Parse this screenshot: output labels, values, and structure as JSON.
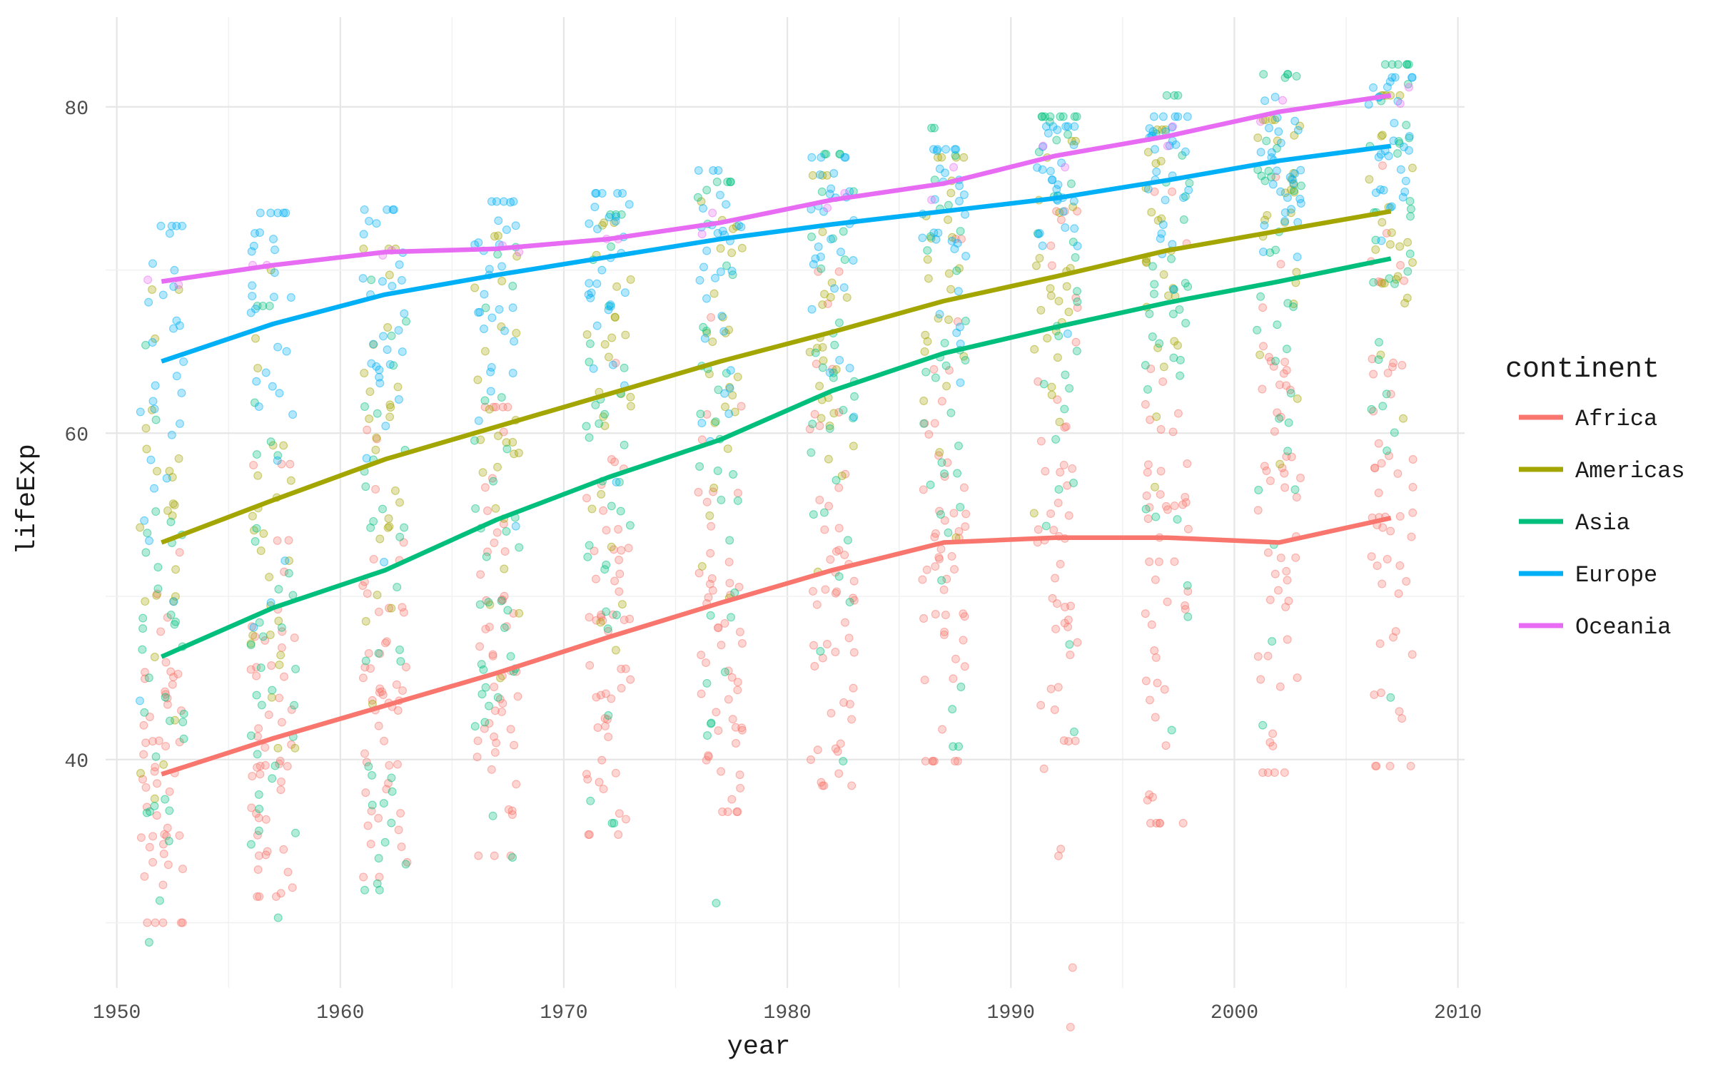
{
  "chart_data": {
    "type": "scatter",
    "title": "",
    "xlabel": "year",
    "ylabel": "lifeExp",
    "xlim": [
      1949.5,
      2010.3
    ],
    "ylim": [
      26.0,
      85.5
    ],
    "x_ticks": [
      1950,
      1960,
      1970,
      1980,
      1990,
      2000,
      2010
    ],
    "y_ticks": [
      40,
      60,
      80
    ],
    "grid": true,
    "legend": {
      "title": "continent",
      "position": "right"
    },
    "point_alpha": 0.3,
    "smooth_x": [
      1952,
      1957,
      1962,
      1967,
      1972,
      1977,
      1982,
      1987,
      1992,
      1997,
      2002,
      2007
    ],
    "series": [
      {
        "name": "Africa",
        "color": "#F8766D",
        "point_count": [
          52,
          52,
          52,
          52,
          52,
          52,
          52,
          52,
          52,
          52,
          52,
          52
        ],
        "point_range": [
          [
            30.0,
            52.7
          ],
          [
            31.6,
            58.1
          ],
          [
            32.8,
            60.2
          ],
          [
            34.1,
            61.6
          ],
          [
            35.4,
            64.3
          ],
          [
            36.8,
            67.1
          ],
          [
            38.4,
            69.9
          ],
          [
            39.9,
            71.9
          ],
          [
            23.6,
            73.6
          ],
          [
            36.1,
            74.8
          ],
          [
            39.2,
            75.7
          ],
          [
            39.6,
            76.4
          ]
        ],
        "smooth": [
          39.1,
          41.3,
          43.3,
          45.3,
          47.5,
          49.6,
          51.6,
          53.3,
          53.6,
          53.6,
          53.3,
          54.8
        ]
      },
      {
        "name": "Americas",
        "color": "#A3A500",
        "point_count": [
          25,
          25,
          25,
          25,
          25,
          25,
          25,
          25,
          25,
          25,
          25,
          25
        ],
        "point_range": [
          [
            37.6,
            68.8
          ],
          [
            40.7,
            70.0
          ],
          [
            43.4,
            71.3
          ],
          [
            45.0,
            72.1
          ],
          [
            46.7,
            72.9
          ],
          [
            49.9,
            74.2
          ],
          [
            51.5,
            75.8
          ],
          [
            53.6,
            76.9
          ],
          [
            55.1,
            77.9
          ],
          [
            56.7,
            78.6
          ],
          [
            58.1,
            79.2
          ],
          [
            60.9,
            80.7
          ]
        ],
        "smooth": [
          53.3,
          55.9,
          58.4,
          60.4,
          62.4,
          64.4,
          66.2,
          68.1,
          69.6,
          71.2,
          72.4,
          73.6
        ]
      },
      {
        "name": "Asia",
        "color": "#00BF7D",
        "point_count": [
          33,
          33,
          33,
          33,
          33,
          33,
          33,
          33,
          33,
          33,
          33,
          33
        ],
        "point_range": [
          [
            28.8,
            65.4
          ],
          [
            30.3,
            67.8
          ],
          [
            32.0,
            69.4
          ],
          [
            34.0,
            71.4
          ],
          [
            36.1,
            73.4
          ],
          [
            31.2,
            75.4
          ],
          [
            39.9,
            77.1
          ],
          [
            40.8,
            78.7
          ],
          [
            41.7,
            79.4
          ],
          [
            41.8,
            80.7
          ],
          [
            42.1,
            82.0
          ],
          [
            43.8,
            82.6
          ]
        ],
        "smooth": [
          46.3,
          49.3,
          51.6,
          54.7,
          57.3,
          59.6,
          62.6,
          64.9,
          66.5,
          68.0,
          69.3,
          70.7
        ]
      },
      {
        "name": "Europe",
        "color": "#00B0F6",
        "point_count": [
          30,
          30,
          30,
          30,
          30,
          30,
          30,
          30,
          30,
          30,
          30,
          30
        ],
        "point_range": [
          [
            43.6,
            72.7
          ],
          [
            48.1,
            73.5
          ],
          [
            52.1,
            73.7
          ],
          [
            54.3,
            74.2
          ],
          [
            57.0,
            74.7
          ],
          [
            59.5,
            76.1
          ],
          [
            61.0,
            76.9
          ],
          [
            63.1,
            77.4
          ],
          [
            66.1,
            78.8
          ],
          [
            68.8,
            79.4
          ],
          [
            70.8,
            80.6
          ],
          [
            71.8,
            81.8
          ]
        ],
        "smooth": [
          64.4,
          66.7,
          68.5,
          69.7,
          70.8,
          71.9,
          72.8,
          73.6,
          74.4,
          75.5,
          76.7,
          77.6
        ]
      },
      {
        "name": "Oceania",
        "color": "#E76BF3",
        "point_count": [
          2,
          2,
          2,
          2,
          2,
          2,
          2,
          2,
          2,
          2,
          2,
          2
        ],
        "point_range": [
          [
            69.1,
            69.4
          ],
          [
            70.3,
            70.3
          ],
          [
            70.9,
            71.2
          ],
          [
            71.1,
            71.5
          ],
          [
            71.9,
            71.9
          ],
          [
            72.2,
            73.5
          ],
          [
            73.8,
            74.7
          ],
          [
            74.3,
            76.3
          ],
          [
            76.3,
            77.6
          ],
          [
            77.6,
            78.8
          ],
          [
            79.1,
            80.4
          ],
          [
            80.2,
            81.2
          ]
        ],
        "smooth": [
          69.3,
          70.3,
          71.1,
          71.3,
          71.9,
          72.9,
          74.3,
          75.3,
          77.0,
          78.2,
          79.7,
          80.7
        ]
      }
    ]
  }
}
